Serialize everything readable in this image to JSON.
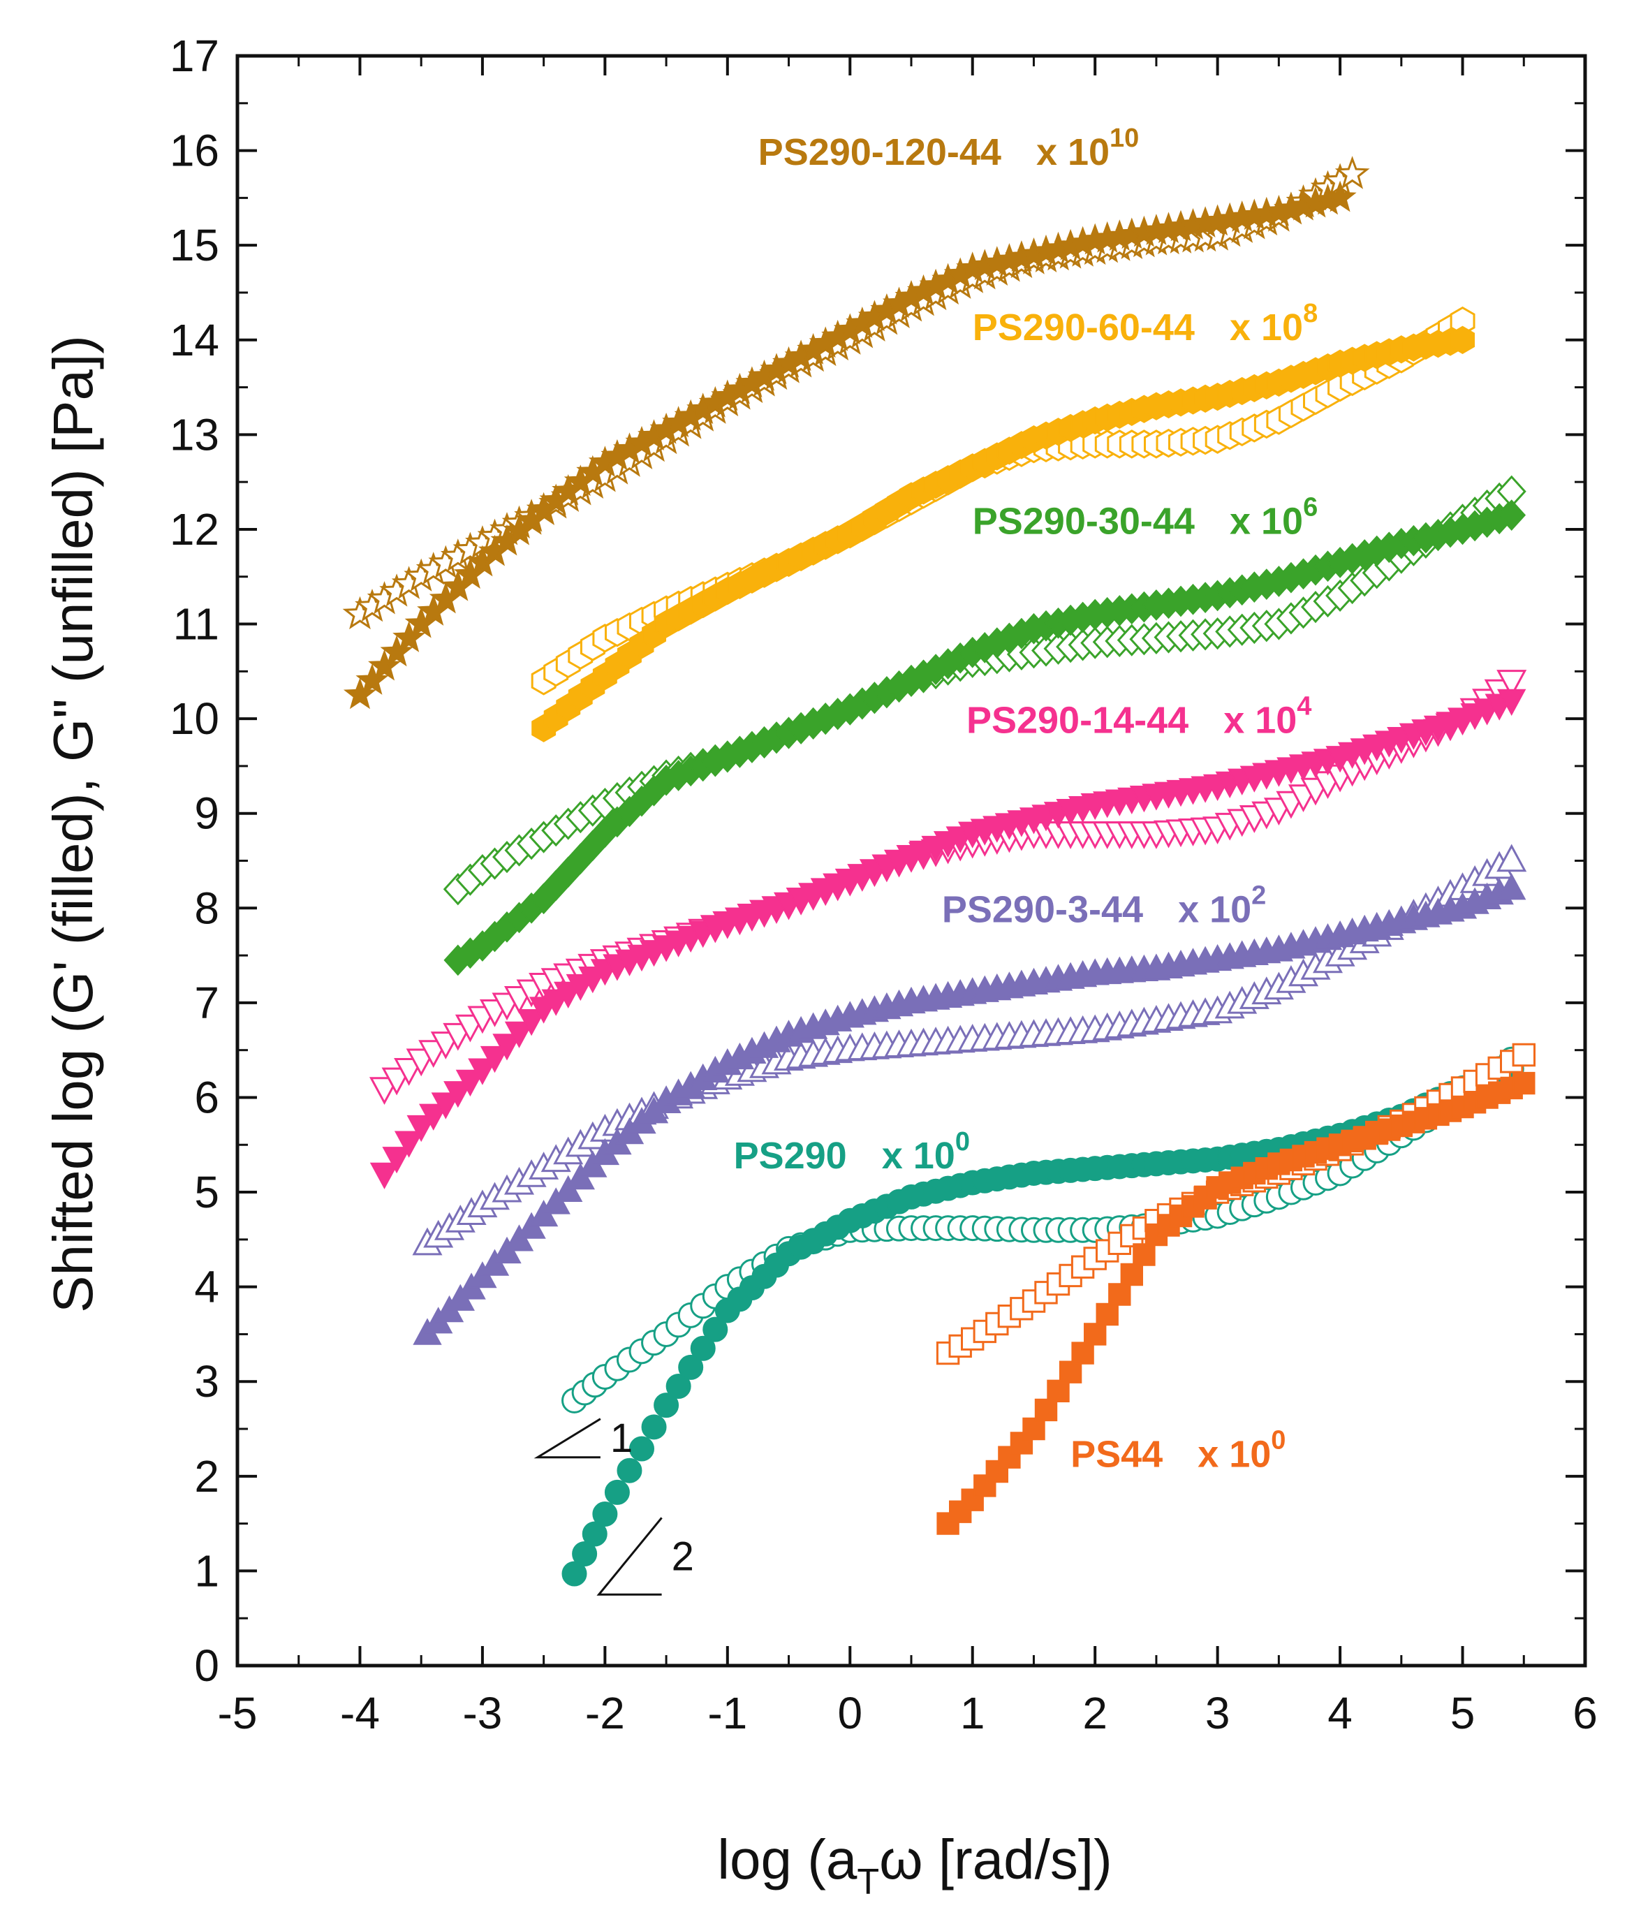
{
  "chart_data": {
    "type": "scatter",
    "xlabel": {
      "pre": "log (a",
      "sub": "T",
      "post": "ω [rad/s])"
    },
    "ylabel": "Shifted log (G' (filled), G\" (unfilled) [Pa])",
    "xlim": [
      -5,
      6
    ],
    "ylim": [
      0,
      17
    ],
    "xticks": [
      "-5",
      "-4",
      "-3",
      "-2",
      "-1",
      "0",
      "1",
      "2",
      "3",
      "4",
      "5",
      "6"
    ],
    "yticks": [
      "0",
      "1",
      "2",
      "3",
      "4",
      "5",
      "6",
      "7",
      "8",
      "9",
      "10",
      "11",
      "12",
      "13",
      "14",
      "15",
      "16",
      "17"
    ],
    "grid": false,
    "slope_markers": [
      {
        "label": "1",
        "at": [
          -2.55,
          2.2
        ]
      },
      {
        "label": "2",
        "at": [
          -2.05,
          0.75
        ]
      }
    ],
    "series": [
      {
        "name": "PS290-120-44",
        "factor_base": "x 10",
        "factor_exp": "10",
        "color": "#b8790f",
        "marker": "star",
        "label_at": [
          -0.75,
          15.85
        ],
        "Gp": [
          [
            -4.0,
            10.25
          ],
          [
            -3.5,
            11.0
          ],
          [
            -3.0,
            11.65
          ],
          [
            -2.5,
            12.2
          ],
          [
            -2.0,
            12.7
          ],
          [
            -1.5,
            13.05
          ],
          [
            -1.0,
            13.4
          ],
          [
            -0.5,
            13.75
          ],
          [
            0.0,
            14.1
          ],
          [
            0.5,
            14.45
          ],
          [
            1.0,
            14.75
          ],
          [
            1.5,
            14.9
          ],
          [
            2.0,
            15.05
          ],
          [
            2.5,
            15.15
          ],
          [
            3.0,
            15.25
          ],
          [
            3.5,
            15.35
          ],
          [
            4.0,
            15.5
          ]
        ],
        "Gpp": [
          [
            -4.0,
            11.1
          ],
          [
            -3.5,
            11.5
          ],
          [
            -3.0,
            11.85
          ],
          [
            -2.5,
            12.2
          ],
          [
            -2.0,
            12.55
          ],
          [
            -1.5,
            12.95
          ],
          [
            -1.0,
            13.35
          ],
          [
            -0.5,
            13.7
          ],
          [
            0.0,
            14.0
          ],
          [
            0.5,
            14.35
          ],
          [
            1.0,
            14.65
          ],
          [
            1.5,
            14.85
          ],
          [
            2.0,
            14.95
          ],
          [
            2.5,
            15.05
          ],
          [
            3.0,
            15.1
          ],
          [
            3.5,
            15.3
          ],
          [
            4.1,
            15.75
          ]
        ]
      },
      {
        "name": "PS290-60-44",
        "factor_base": "x 10",
        "factor_exp": "8",
        "color": "#f9b10b",
        "marker": "hexagon",
        "label_at": [
          1.0,
          14.0
        ],
        "Gp": [
          [
            -2.5,
            9.9
          ],
          [
            -2.0,
            10.45
          ],
          [
            -1.5,
            11.0
          ],
          [
            -1.0,
            11.35
          ],
          [
            -0.5,
            11.65
          ],
          [
            0.0,
            11.95
          ],
          [
            0.5,
            12.35
          ],
          [
            1.0,
            12.65
          ],
          [
            1.5,
            12.95
          ],
          [
            2.0,
            13.15
          ],
          [
            2.5,
            13.3
          ],
          [
            3.0,
            13.4
          ],
          [
            3.5,
            13.55
          ],
          [
            4.0,
            13.75
          ],
          [
            4.5,
            13.9
          ],
          [
            5.0,
            14.0
          ]
        ],
        "Gpp": [
          [
            -2.5,
            10.4
          ],
          [
            -2.0,
            10.85
          ],
          [
            -1.5,
            11.15
          ],
          [
            -1.0,
            11.4
          ],
          [
            -0.5,
            11.65
          ],
          [
            0.0,
            11.95
          ],
          [
            0.5,
            12.3
          ],
          [
            1.0,
            12.65
          ],
          [
            1.5,
            12.85
          ],
          [
            2.0,
            12.9
          ],
          [
            2.5,
            12.9
          ],
          [
            3.0,
            12.95
          ],
          [
            3.5,
            13.15
          ],
          [
            4.0,
            13.5
          ],
          [
            4.5,
            13.8
          ],
          [
            5.0,
            14.2
          ]
        ]
      },
      {
        "name": "PS290-30-44",
        "factor_base": "x 10",
        "factor_exp": "6",
        "color": "#3aa32a",
        "marker": "diamond",
        "label_at": [
          1.0,
          11.95
        ],
        "Gp": [
          [
            -3.2,
            7.45
          ],
          [
            -3.0,
            7.6
          ],
          [
            -2.5,
            8.1
          ],
          [
            -2.0,
            8.8
          ],
          [
            -1.5,
            9.35
          ],
          [
            -1.0,
            9.6
          ],
          [
            -0.5,
            9.85
          ],
          [
            0.0,
            10.1
          ],
          [
            0.5,
            10.4
          ],
          [
            1.0,
            10.7
          ],
          [
            1.5,
            10.95
          ],
          [
            2.0,
            11.1
          ],
          [
            2.5,
            11.2
          ],
          [
            3.0,
            11.3
          ],
          [
            3.5,
            11.45
          ],
          [
            4.0,
            11.65
          ],
          [
            4.5,
            11.85
          ],
          [
            5.0,
            12.0
          ],
          [
            5.4,
            12.15
          ]
        ],
        "Gpp": [
          [
            -3.2,
            8.2
          ],
          [
            -3.0,
            8.4
          ],
          [
            -2.5,
            8.75
          ],
          [
            -2.0,
            9.1
          ],
          [
            -1.5,
            9.4
          ],
          [
            -1.0,
            9.6
          ],
          [
            -0.5,
            9.85
          ],
          [
            0.0,
            10.1
          ],
          [
            0.5,
            10.4
          ],
          [
            1.0,
            10.6
          ],
          [
            1.5,
            10.7
          ],
          [
            2.0,
            10.8
          ],
          [
            2.5,
            10.85
          ],
          [
            3.0,
            10.9
          ],
          [
            3.5,
            11.0
          ],
          [
            4.0,
            11.3
          ],
          [
            4.5,
            11.7
          ],
          [
            5.0,
            12.1
          ],
          [
            5.4,
            12.4
          ]
        ]
      },
      {
        "name": "PS290-14-44",
        "factor_base": "x 10",
        "factor_exp": "4",
        "color": "#f5318f",
        "marker": "triangle-down",
        "label_at": [
          0.95,
          9.85
        ],
        "Gp": [
          [
            -3.8,
            5.2
          ],
          [
            -3.5,
            5.7
          ],
          [
            -3.0,
            6.3
          ],
          [
            -2.5,
            6.95
          ],
          [
            -2.0,
            7.35
          ],
          [
            -1.5,
            7.6
          ],
          [
            -1.0,
            7.85
          ],
          [
            -0.5,
            8.05
          ],
          [
            0.0,
            8.3
          ],
          [
            0.5,
            8.55
          ],
          [
            1.0,
            8.8
          ],
          [
            1.5,
            8.95
          ],
          [
            2.0,
            9.1
          ],
          [
            2.5,
            9.2
          ],
          [
            3.0,
            9.3
          ],
          [
            3.5,
            9.45
          ],
          [
            4.0,
            9.6
          ],
          [
            4.5,
            9.8
          ],
          [
            5.0,
            10.0
          ],
          [
            5.4,
            10.2
          ]
        ],
        "Gpp": [
          [
            -3.8,
            6.1
          ],
          [
            -3.5,
            6.4
          ],
          [
            -3.0,
            6.85
          ],
          [
            -2.5,
            7.2
          ],
          [
            -2.0,
            7.45
          ],
          [
            -1.5,
            7.65
          ],
          [
            -1.0,
            7.85
          ],
          [
            -0.5,
            8.05
          ],
          [
            0.0,
            8.3
          ],
          [
            0.5,
            8.55
          ],
          [
            1.0,
            8.7
          ],
          [
            1.5,
            8.8
          ],
          [
            2.0,
            8.8
          ],
          [
            2.5,
            8.8
          ],
          [
            3.0,
            8.85
          ],
          [
            3.5,
            9.05
          ],
          [
            4.0,
            9.4
          ],
          [
            4.5,
            9.7
          ],
          [
            5.0,
            10.0
          ],
          [
            5.4,
            10.4
          ]
        ]
      },
      {
        "name": "PS290-3-44",
        "factor_base": "x 10",
        "factor_exp": "2",
        "color": "#7a6fb8",
        "marker": "triangle-up",
        "label_at": [
          0.75,
          7.85
        ],
        "Gp": [
          [
            -3.45,
            3.5
          ],
          [
            -3.0,
            4.1
          ],
          [
            -2.5,
            4.75
          ],
          [
            -2.0,
            5.4
          ],
          [
            -1.5,
            5.95
          ],
          [
            -1.0,
            6.35
          ],
          [
            -0.5,
            6.65
          ],
          [
            0.0,
            6.85
          ],
          [
            0.5,
            7.0
          ],
          [
            1.0,
            7.1
          ],
          [
            1.5,
            7.2
          ],
          [
            2.0,
            7.3
          ],
          [
            2.5,
            7.35
          ],
          [
            3.0,
            7.45
          ],
          [
            3.5,
            7.55
          ],
          [
            4.0,
            7.7
          ],
          [
            4.5,
            7.85
          ],
          [
            5.0,
            8.0
          ],
          [
            5.4,
            8.2
          ]
        ],
        "Gpp": [
          [
            -3.45,
            4.45
          ],
          [
            -3.0,
            4.85
          ],
          [
            -2.5,
            5.25
          ],
          [
            -2.0,
            5.65
          ],
          [
            -1.5,
            5.95
          ],
          [
            -1.0,
            6.2
          ],
          [
            -0.5,
            6.4
          ],
          [
            0.0,
            6.5
          ],
          [
            0.5,
            6.55
          ],
          [
            1.0,
            6.6
          ],
          [
            1.5,
            6.65
          ],
          [
            2.0,
            6.7
          ],
          [
            2.5,
            6.8
          ],
          [
            3.0,
            6.9
          ],
          [
            3.5,
            7.15
          ],
          [
            4.0,
            7.5
          ],
          [
            4.5,
            7.85
          ],
          [
            5.0,
            8.2
          ],
          [
            5.4,
            8.5
          ]
        ]
      },
      {
        "name": "PS290",
        "factor_base": "x 10",
        "factor_exp": "0",
        "color": "#16a085",
        "marker": "circle",
        "label_at": [
          -0.95,
          5.25
        ],
        "Gp": [
          [
            -2.25,
            0.97
          ],
          [
            -2.0,
            1.6
          ],
          [
            -1.5,
            2.75
          ],
          [
            -1.0,
            3.75
          ],
          [
            -0.5,
            4.35
          ],
          [
            0.0,
            4.7
          ],
          [
            0.5,
            4.95
          ],
          [
            1.0,
            5.1
          ],
          [
            1.5,
            5.2
          ],
          [
            2.0,
            5.25
          ],
          [
            2.5,
            5.3
          ],
          [
            3.0,
            5.35
          ],
          [
            3.5,
            5.45
          ],
          [
            4.0,
            5.6
          ],
          [
            4.5,
            5.8
          ],
          [
            5.0,
            6.1
          ],
          [
            5.4,
            6.3
          ]
        ],
        "Gpp": [
          [
            -2.25,
            2.8
          ],
          [
            -2.0,
            3.05
          ],
          [
            -1.5,
            3.5
          ],
          [
            -1.0,
            4.0
          ],
          [
            -0.5,
            4.4
          ],
          [
            0.0,
            4.6
          ],
          [
            0.5,
            4.62
          ],
          [
            1.0,
            4.62
          ],
          [
            1.5,
            4.6
          ],
          [
            2.0,
            4.6
          ],
          [
            2.5,
            4.65
          ],
          [
            3.0,
            4.75
          ],
          [
            3.5,
            4.95
          ],
          [
            4.0,
            5.2
          ],
          [
            4.5,
            5.6
          ],
          [
            5.0,
            6.0
          ],
          [
            5.4,
            6.4
          ]
        ]
      },
      {
        "name": "PS44",
        "factor_base": "x 10",
        "factor_exp": "0",
        "color": "#f26a1b",
        "marker": "square",
        "label_at": [
          1.8,
          2.1
        ],
        "Gp": [
          [
            0.8,
            1.5
          ],
          [
            1.0,
            1.75
          ],
          [
            1.5,
            2.5
          ],
          [
            2.0,
            3.5
          ],
          [
            2.5,
            4.55
          ],
          [
            3.0,
            5.05
          ],
          [
            3.5,
            5.3
          ],
          [
            4.0,
            5.5
          ],
          [
            4.5,
            5.7
          ],
          [
            5.0,
            5.9
          ],
          [
            5.5,
            6.15
          ]
        ],
        "Gpp": [
          [
            0.8,
            3.3
          ],
          [
            1.0,
            3.45
          ],
          [
            1.5,
            3.85
          ],
          [
            2.0,
            4.3
          ],
          [
            2.5,
            4.7
          ],
          [
            3.0,
            5.0
          ],
          [
            3.5,
            5.2
          ],
          [
            4.0,
            5.45
          ],
          [
            4.5,
            5.75
          ],
          [
            5.0,
            6.1
          ],
          [
            5.5,
            6.45
          ]
        ]
      }
    ]
  }
}
